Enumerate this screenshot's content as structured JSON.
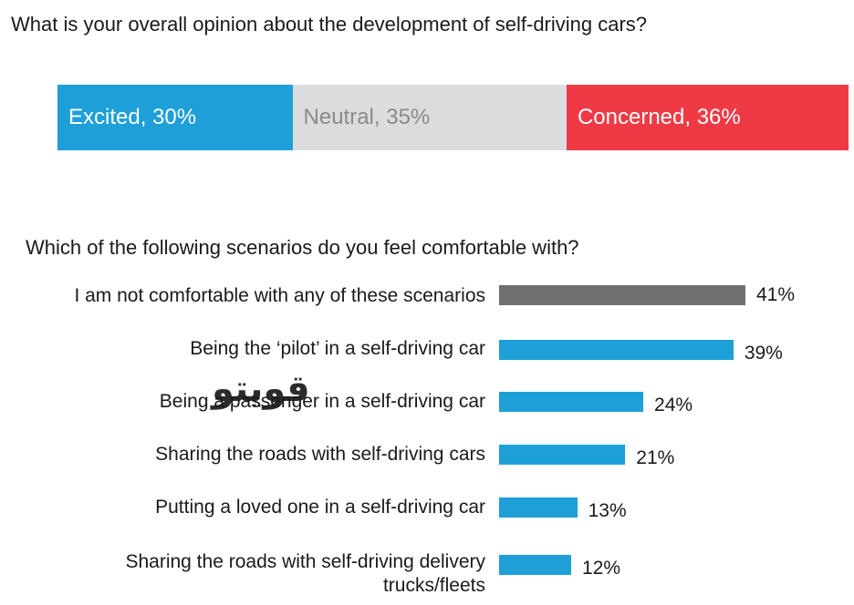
{
  "question1": "What is your overall opinion about the development of self-driving cars?",
  "question2": "Which of the following scenarios do you feel comfortable with?",
  "watermark": "قويتو",
  "chart_data": [
    {
      "type": "bar",
      "orientation": "stacked-horizontal",
      "title": "What is your overall opinion about the development of self-driving cars?",
      "series": [
        {
          "name": "Excited",
          "value": 30,
          "label": "Excited, 30%",
          "color": "#1e9fd8",
          "text_color": "#ffffff"
        },
        {
          "name": "Neutral",
          "value": 35,
          "label": "Neutral, 35%",
          "color": "#dcdcde",
          "text_color": "#8a8a8a"
        },
        {
          "name": "Concerned",
          "value": 36,
          "label": "Concerned, 36%",
          "color": "#ef3a46",
          "text_color": "#ffffff"
        }
      ]
    },
    {
      "type": "bar",
      "orientation": "horizontal",
      "title": "Which of the following scenarios do you feel comfortable with?",
      "xlim": [
        0,
        41
      ],
      "categories": [
        "I am not comfortable with any of these scenarios",
        "Being the ‘pilot’ in a self-driving car",
        "Being a passenger in a self-driving car",
        "Sharing the roads with self-driving cars",
        "Putting a loved one in a self-driving car",
        "Sharing the roads with self-driving delivery trucks/fleets"
      ],
      "values": [
        41,
        39,
        24,
        21,
        13,
        12
      ],
      "value_labels": [
        "41%",
        "39%",
        "24%",
        "21%",
        "13%",
        "12%"
      ],
      "colors": [
        "#707070",
        "#1e9fd8",
        "#1e9fd8",
        "#1e9fd8",
        "#1e9fd8",
        "#1e9fd8"
      ]
    }
  ]
}
